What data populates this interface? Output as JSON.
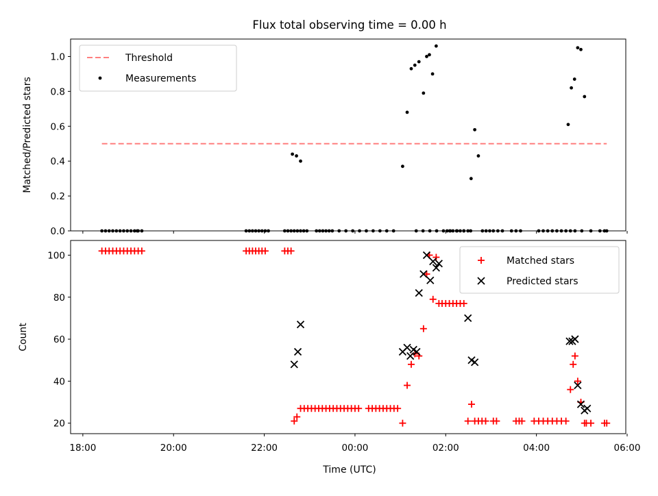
{
  "chart_data": [
    {
      "type": "scatter",
      "title": "Flux total observing time = 0.00 h",
      "xlabel": "",
      "ylabel": "Matched/Predicted stars",
      "xlim": [
        -0.27,
        11.97
      ],
      "ylim": [
        0,
        1.1
      ],
      "yticks": [
        "0.0",
        "0.2",
        "0.4",
        "0.6",
        "0.8",
        "1.0"
      ],
      "legend_position": "top-left",
      "threshold": {
        "name": "Threshold",
        "value": 0.5,
        "x_range": [
          0.42,
          11.55
        ],
        "color": "#ff7f7f"
      },
      "series": [
        {
          "name": "Measurements",
          "color": "#000000",
          "x": [
            0.42,
            0.5,
            0.58,
            0.66,
            0.74,
            0.82,
            0.9,
            0.98,
            1.06,
            1.14,
            1.22,
            1.3,
            1.2,
            3.6,
            3.67,
            3.74,
            3.81,
            3.88,
            3.95,
            4.02,
            4.09,
            4.45,
            4.52,
            4.59,
            4.66,
            4.73,
            4.8,
            4.87,
            4.94,
            5.15,
            5.22,
            5.29,
            5.36,
            5.43,
            5.5,
            5.65,
            5.8,
            5.95,
            6.1,
            6.25,
            6.4,
            6.55,
            6.7,
            6.85,
            7.35,
            7.5,
            7.65,
            7.8,
            7.95,
            8.1,
            8.25,
            8.4,
            8.55,
            4.62,
            4.71,
            4.8,
            7.05,
            7.15,
            7.24,
            7.32,
            7.41,
            7.51,
            7.58,
            7.64,
            7.71,
            7.79,
            8.03,
            8.09,
            8.16,
            8.24,
            8.32,
            8.4,
            8.49,
            8.56,
            8.64,
            8.72,
            8.81,
            8.89,
            8.97,
            9.05,
            9.15,
            9.25,
            9.45,
            9.55,
            9.65,
            10.05,
            10.15,
            10.25,
            10.35,
            10.45,
            10.55,
            10.65,
            10.75,
            10.85,
            11.0,
            11.2,
            11.4,
            11.5,
            11.55,
            10.7,
            10.77,
            10.84,
            10.91,
            10.98,
            11.06
          ],
          "y": [
            0,
            0,
            0,
            0,
            0,
            0,
            0,
            0,
            0,
            0,
            0,
            0,
            0,
            0,
            0,
            0,
            0,
            0,
            0,
            0,
            0,
            0,
            0,
            0,
            0,
            0,
            0,
            0,
            0,
            0,
            0,
            0,
            0,
            0,
            0,
            0,
            0,
            0,
            0,
            0,
            0,
            0,
            0,
            0,
            0,
            0,
            0,
            0,
            0,
            0,
            0,
            0,
            0,
            0.44,
            0.43,
            0.4,
            0.37,
            0.68,
            0.93,
            0.95,
            0.97,
            0.79,
            1.0,
            1.01,
            0.9,
            1.06,
            0,
            0,
            0,
            0,
            0,
            0,
            0,
            0.3,
            0.58,
            0.43,
            0,
            0,
            0,
            0,
            0,
            0,
            0,
            0,
            0,
            0,
            0,
            0,
            0,
            0,
            0,
            0,
            0,
            0,
            0,
            0,
            0,
            0,
            0,
            0.61,
            0.82,
            0.87,
            1.05,
            1.04,
            0.77
          ]
        }
      ]
    },
    {
      "type": "scatter",
      "xlabel": "Time (UTC)",
      "ylabel": "Count",
      "xlim": [
        -0.27,
        11.97
      ],
      "ylim": [
        15,
        107
      ],
      "yticks": [
        "20",
        "40",
        "60",
        "80",
        "100"
      ],
      "xticks": [
        "18:00",
        "20:00",
        "22:00",
        "00:00",
        "02:00",
        "04:00",
        "06:00"
      ],
      "xtick_hours_from_1800": [
        0,
        2,
        4,
        6,
        8,
        10,
        12
      ],
      "legend_position": "top-right",
      "series": [
        {
          "name": "Matched stars",
          "marker": "plus",
          "color": "#ff0000",
          "x": [
            0.42,
            0.5,
            0.58,
            0.66,
            0.74,
            0.82,
            0.9,
            0.98,
            1.06,
            1.14,
            1.22,
            1.3,
            3.6,
            3.67,
            3.74,
            3.81,
            3.88,
            3.95,
            4.02,
            4.45,
            4.52,
            4.59,
            4.66,
            4.72,
            4.8,
            4.88,
            4.96,
            5.04,
            5.12,
            5.2,
            5.28,
            5.36,
            5.44,
            5.52,
            5.6,
            5.68,
            5.76,
            5.84,
            5.92,
            6.0,
            6.08,
            6.3,
            6.38,
            6.46,
            6.54,
            6.62,
            6.7,
            6.78,
            6.86,
            6.94,
            7.05,
            7.15,
            7.24,
            7.32,
            7.41,
            7.51,
            7.58,
            7.64,
            7.72,
            7.79,
            7.85,
            7.92,
            8.0,
            8.08,
            8.16,
            8.24,
            8.32,
            8.4,
            8.49,
            8.57,
            8.64,
            8.72,
            8.8,
            8.88,
            9.05,
            9.12,
            9.55,
            9.62,
            9.68,
            9.95,
            10.05,
            10.15,
            10.25,
            10.35,
            10.45,
            10.55,
            10.65,
            10.75,
            10.81,
            10.85,
            10.91,
            10.98,
            11.06,
            11.1,
            11.2,
            11.5,
            11.55
          ],
          "y": [
            102,
            102,
            102,
            102,
            102,
            102,
            102,
            102,
            102,
            102,
            102,
            102,
            102,
            102,
            102,
            102,
            102,
            102,
            102,
            102,
            102,
            102,
            21,
            23,
            27,
            27,
            27,
            27,
            27,
            27,
            27,
            27,
            27,
            27,
            27,
            27,
            27,
            27,
            27,
            27,
            27,
            27,
            27,
            27,
            27,
            27,
            27,
            27,
            27,
            27,
            20,
            38,
            48,
            53,
            52,
            65,
            91,
            100,
            79,
            99,
            77,
            77,
            77,
            77,
            77,
            77,
            77,
            77,
            21,
            29,
            21,
            21,
            21,
            21,
            21,
            21,
            21,
            21,
            21,
            21,
            21,
            21,
            21,
            21,
            21,
            21,
            21,
            36,
            48,
            52,
            40,
            30,
            20,
            20,
            20,
            20,
            20
          ]
        },
        {
          "name": "Predicted stars",
          "marker": "x",
          "color": "#000000",
          "x": [
            4.66,
            4.74,
            4.8,
            7.05,
            7.15,
            7.22,
            7.29,
            7.36,
            7.41,
            7.51,
            7.58,
            7.66,
            7.72,
            7.79,
            7.85,
            8.49,
            8.57,
            8.64,
            10.73,
            10.79,
            10.85,
            10.91,
            10.98,
            11.06,
            11.12
          ],
          "y": [
            48,
            54,
            67,
            54,
            56,
            52,
            55,
            54,
            82,
            91,
            100,
            88,
            97,
            94,
            96,
            70,
            50,
            49,
            59,
            59,
            60,
            38,
            29,
            26,
            27
          ]
        }
      ]
    }
  ]
}
